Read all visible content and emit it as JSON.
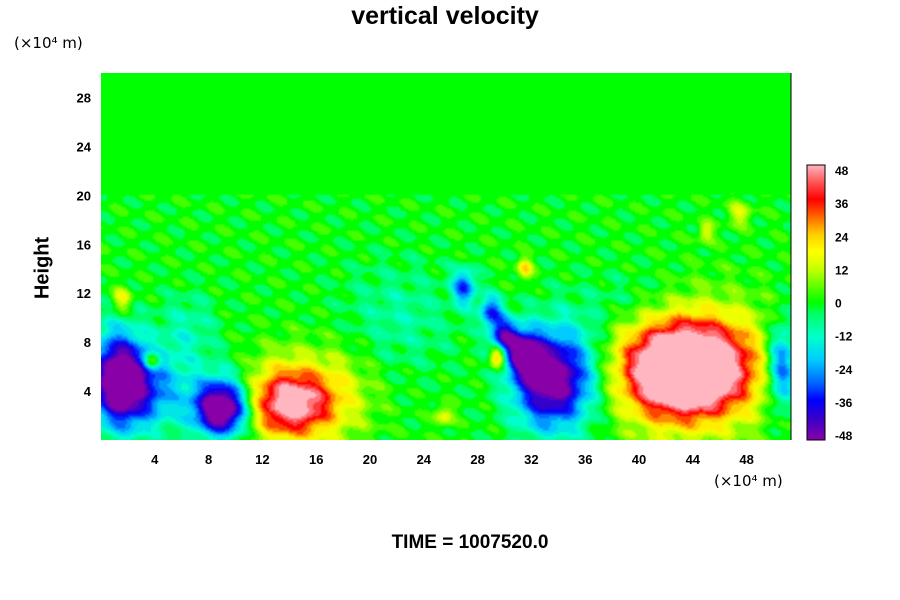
{
  "chart_data": {
    "type": "heatmap",
    "title": "vertical velocity",
    "ylabel": "Height",
    "xlabel": "",
    "x_unit_label": "(×10⁴ m)",
    "y_unit_label": "(×10⁴ m)",
    "footer": "TIME = 1007520.0",
    "x_ticks": [
      4,
      8,
      12,
      16,
      20,
      24,
      28,
      32,
      36,
      40,
      44,
      48
    ],
    "y_ticks": [
      4,
      8,
      12,
      16,
      20,
      24,
      28
    ],
    "xlim": [
      0,
      51.3
    ],
    "ylim": [
      0,
      30
    ],
    "colorbar": {
      "ticks": [
        48,
        36,
        24,
        12,
        0,
        -12,
        -24,
        -36,
        -48
      ],
      "range": [
        -48,
        48
      ],
      "stops": [
        {
          "v": -48,
          "color": "#8a00a8"
        },
        {
          "v": -40,
          "color": "#3300cc"
        },
        {
          "v": -34,
          "color": "#0000ff"
        },
        {
          "v": -28,
          "color": "#0066ff"
        },
        {
          "v": -20,
          "color": "#00ccff"
        },
        {
          "v": -12,
          "color": "#00ffcc"
        },
        {
          "v": -4,
          "color": "#00ff66"
        },
        {
          "v": 0,
          "color": "#00ff00"
        },
        {
          "v": 6,
          "color": "#66ff00"
        },
        {
          "v": 12,
          "color": "#ccff00"
        },
        {
          "v": 18,
          "color": "#ffff00"
        },
        {
          "v": 24,
          "color": "#ffcc00"
        },
        {
          "v": 30,
          "color": "#ff6600"
        },
        {
          "v": 36,
          "color": "#ff0000"
        },
        {
          "v": 42,
          "color": "#ff5555"
        },
        {
          "v": 48,
          "color": "#ffb6c1"
        }
      ]
    },
    "features": [
      {
        "x": 1.3,
        "y": 5.0,
        "sx": 1.4,
        "sy": 2.6,
        "amp": -55
      },
      {
        "x": 3.5,
        "y": 4.2,
        "sx": 1.8,
        "sy": 2.2,
        "amp": -25
      },
      {
        "x": 9.0,
        "y": 2.5,
        "sx": 1.3,
        "sy": 1.4,
        "amp": -50
      },
      {
        "x": 9.0,
        "y": 3.2,
        "sx": 2.0,
        "sy": 2.0,
        "amp": -20
      },
      {
        "x": 14.0,
        "y": 3.0,
        "sx": 2.2,
        "sy": 1.9,
        "amp": 44
      },
      {
        "x": 14.0,
        "y": 3.5,
        "sx": 3.0,
        "sy": 2.8,
        "amp": 12
      },
      {
        "x": 33.3,
        "y": 4.8,
        "sx": 1.8,
        "sy": 2.6,
        "amp": -42
      },
      {
        "x": 35.0,
        "y": 5.5,
        "sx": 2.5,
        "sy": 3.0,
        "amp": -20
      },
      {
        "x": 31.5,
        "y": 7.0,
        "sx": 0.8,
        "sy": 1.2,
        "amp": -45
      },
      {
        "x": 30.0,
        "y": 8.5,
        "sx": 0.7,
        "sy": 1.0,
        "amp": -38
      },
      {
        "x": 29.5,
        "y": 6.8,
        "sx": 0.4,
        "sy": 0.6,
        "amp": 36
      },
      {
        "x": 29.0,
        "y": 10.5,
        "sx": 0.6,
        "sy": 0.9,
        "amp": -30
      },
      {
        "x": 27.0,
        "y": 12.5,
        "sx": 0.6,
        "sy": 1.0,
        "amp": -30
      },
      {
        "x": 43.5,
        "y": 5.8,
        "sx": 3.0,
        "sy": 2.5,
        "amp": 60
      },
      {
        "x": 43.5,
        "y": 6.0,
        "sx": 4.2,
        "sy": 3.6,
        "amp": 30
      },
      {
        "x": 50.6,
        "y": 6.0,
        "sx": 0.8,
        "sy": 2.4,
        "amp": -35
      },
      {
        "x": 3.8,
        "y": 6.5,
        "sx": 0.4,
        "sy": 0.5,
        "amp": 28
      },
      {
        "x": 1.6,
        "y": 11.5,
        "sx": 0.5,
        "sy": 0.7,
        "amp": 18
      },
      {
        "x": 31.5,
        "y": 14.0,
        "sx": 0.4,
        "sy": 0.6,
        "amp": 22
      },
      {
        "x": 25.5,
        "y": 2.0,
        "sx": 0.5,
        "sy": 0.6,
        "amp": 16
      },
      {
        "x": 47.5,
        "y": 18.5,
        "sx": 0.6,
        "sy": 0.7,
        "amp": 14
      },
      {
        "x": 45.0,
        "y": 17.0,
        "sx": 0.4,
        "sy": 0.6,
        "amp": 14
      },
      {
        "x": 22.0,
        "y": 10.0,
        "sx": 3.0,
        "sy": 3.0,
        "amp": -8
      },
      {
        "x": 40.0,
        "y": 11.0,
        "sx": 3.0,
        "sy": 2.0,
        "amp": -8
      },
      {
        "x": 18.0,
        "y": 4.0,
        "sx": 2.0,
        "sy": 3.0,
        "amp": 8
      },
      {
        "x": 6.5,
        "y": 9.0,
        "sx": 1.5,
        "sy": 2.0,
        "amp": -10
      }
    ]
  }
}
